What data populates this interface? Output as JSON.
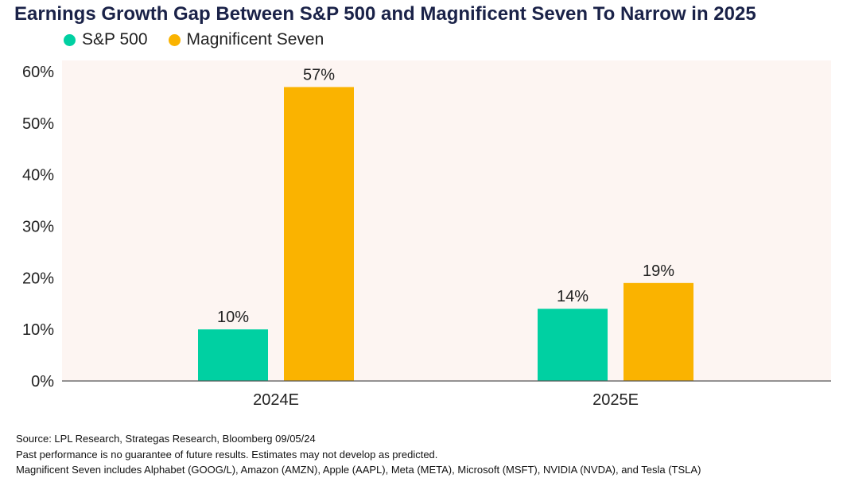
{
  "title": "Earnings Growth Gap Between S&P 500 and Magnificent Seven To Narrow in 2025",
  "legend": {
    "items": [
      {
        "label": "S&P 500",
        "color": "#00d0a2"
      },
      {
        "label": "Magnificent Seven",
        "color": "#fab300"
      }
    ]
  },
  "chart_data": {
    "type": "bar",
    "title": "Earnings Growth Gap Between S&P 500 and Magnificent Seven To Narrow in 2025",
    "categories": [
      "2024E",
      "2025E"
    ],
    "series": [
      {
        "name": "S&P 500",
        "values": [
          10,
          14
        ],
        "labels": [
          "10%",
          "14%"
        ],
        "color": "#00d0a2"
      },
      {
        "name": "Magnificent Seven",
        "values": [
          57,
          19
        ],
        "labels": [
          "57%",
          "19%"
        ],
        "color": "#fab300"
      }
    ],
    "ylim": [
      0,
      60
    ],
    "yticks": [
      0,
      10,
      20,
      30,
      40,
      50,
      60
    ],
    "ytick_labels": [
      "0%",
      "10%",
      "20%",
      "30%",
      "40%",
      "50%",
      "60%"
    ],
    "xlabel": "",
    "ylabel": "",
    "grid": false,
    "legend_position": "top-left",
    "plot_background": "#fdf5f2"
  },
  "footer": {
    "source": "Source: LPL Research, Strategas Research, Bloomberg 09/05/24",
    "disclaimer": "Past performance is no guarantee of future results. Estimates may not develop as predicted.",
    "note": "Magnificent Seven includes Alphabet (GOOG/L), Amazon (AMZN), Apple (AAPL), Meta (META), Microsoft (MSFT), NVIDIA (NVDA), and Tesla (TSLA)"
  }
}
